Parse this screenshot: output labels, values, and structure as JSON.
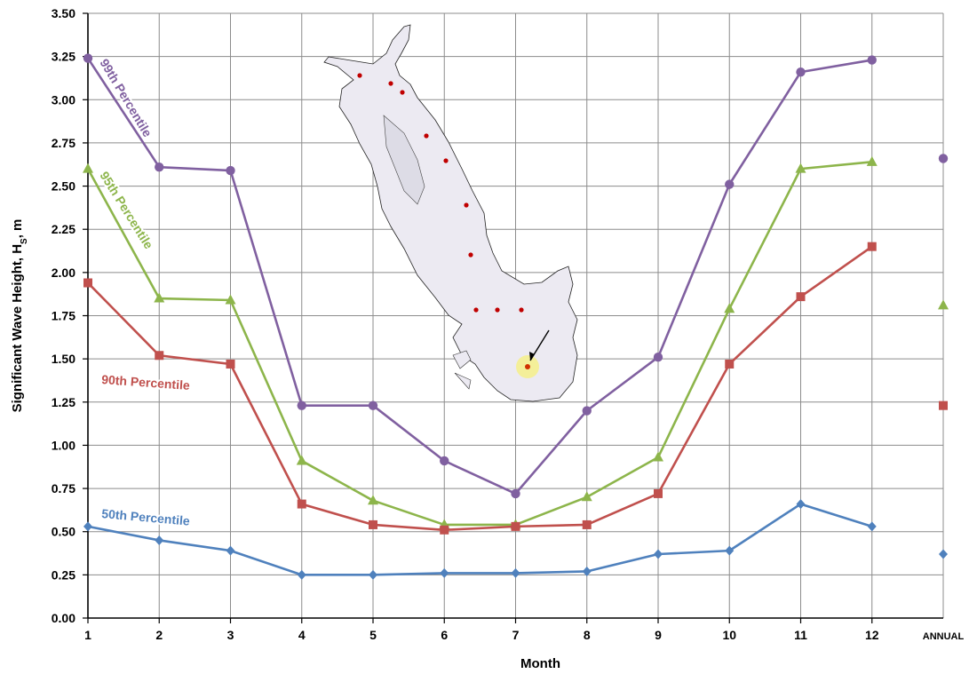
{
  "chart_data": {
    "type": "line",
    "xlabel": "Month",
    "ylabel": "Significant Wave Height, H",
    "ylabel_subscript": "S",
    "ylabel_unit": ", m",
    "x": [
      "1",
      "2",
      "3",
      "4",
      "5",
      "6",
      "7",
      "8",
      "9",
      "10",
      "11",
      "12"
    ],
    "extra_category": "ANNUAL",
    "ylim": [
      0,
      3.5
    ],
    "yticks": [
      "0.00",
      "0.25",
      "0.50",
      "0.75",
      "1.00",
      "1.25",
      "1.50",
      "1.75",
      "2.00",
      "2.25",
      "2.50",
      "2.75",
      "3.00",
      "3.25",
      "3.50"
    ],
    "grid": true,
    "series": [
      {
        "name": "99th Percentile",
        "color": "#8060A0",
        "marker": "circle",
        "values": [
          3.24,
          2.61,
          2.59,
          1.23,
          1.23,
          0.91,
          0.72,
          1.2,
          1.51,
          2.51,
          3.16,
          3.23
        ],
        "annual": 2.66
      },
      {
        "name": "95th Percentile",
        "color": "#8DB54B",
        "marker": "triangle",
        "values": [
          2.6,
          1.85,
          1.84,
          0.91,
          0.68,
          0.54,
          0.54,
          0.7,
          0.93,
          1.79,
          2.6,
          2.64
        ],
        "annual": 1.81
      },
      {
        "name": "90th Percentile",
        "color": "#C0504D",
        "marker": "square",
        "values": [
          1.94,
          1.52,
          1.47,
          0.66,
          0.54,
          0.51,
          0.53,
          0.54,
          0.72,
          1.47,
          1.86,
          2.15
        ],
        "annual": 1.23
      },
      {
        "name": "50th Percentile",
        "color": "#4F81BD",
        "marker": "diamond",
        "values": [
          0.53,
          0.45,
          0.39,
          0.25,
          0.25,
          0.26,
          0.26,
          0.27,
          0.37,
          0.39,
          0.66,
          0.53
        ],
        "annual": 0.37
      }
    ]
  }
}
